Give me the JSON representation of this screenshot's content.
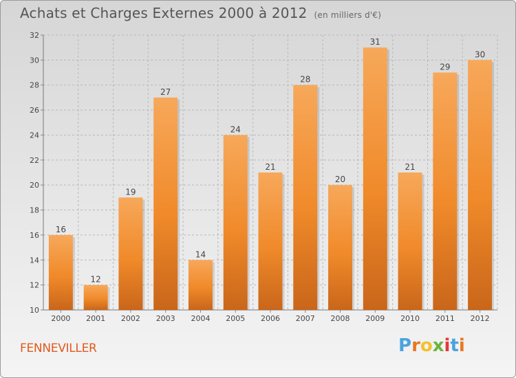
{
  "header": {
    "title": "Achats et Charges Externes 2000 à 2012",
    "subtitle": "(en milliers d'€)"
  },
  "footer": {
    "commune": "FENNEVILLER",
    "logo_letters": [
      "P",
      "r",
      "o",
      "x",
      "i",
      "t",
      "i"
    ],
    "logo_colors": [
      "#4aa3df",
      "#e87722",
      "#f2c12e",
      "#6cb33f",
      "#e03a3a",
      "#4aa3df",
      "#e87722"
    ]
  },
  "colors": {
    "bar": "#f08a2a",
    "bar_light": "#f7a85a",
    "bar_dark": "#c9661a",
    "grid": "#b8b8b8",
    "text": "#444444"
  },
  "chart_data": {
    "type": "bar",
    "title": "Achats et Charges Externes 2000 à 2012",
    "subtitle": "(en milliers d'€)",
    "xlabel": "",
    "ylabel": "",
    "categories": [
      "2000",
      "2001",
      "2002",
      "2003",
      "2004",
      "2005",
      "2006",
      "2007",
      "2008",
      "2009",
      "2010",
      "2011",
      "2012"
    ],
    "values": [
      16,
      12,
      19,
      27,
      14,
      24,
      21,
      28,
      20,
      31,
      21,
      29,
      30
    ],
    "ylim": [
      10,
      32
    ],
    "yticks": [
      10,
      12,
      14,
      16,
      18,
      20,
      22,
      24,
      26,
      28,
      30,
      32
    ],
    "grid": true,
    "legend": "none"
  }
}
